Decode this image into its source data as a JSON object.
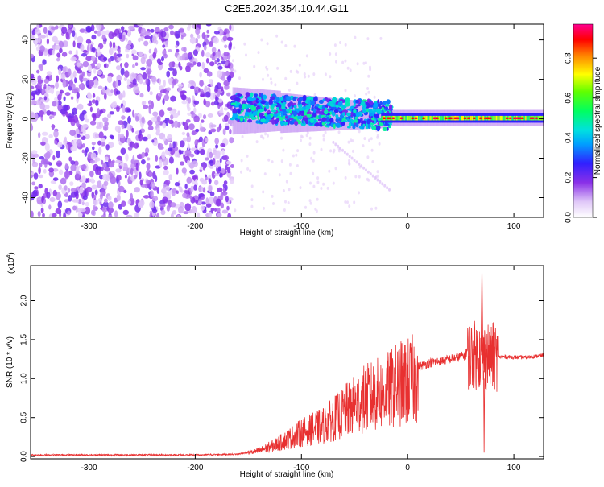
{
  "figure_title": "C2E5.2024.354.10.44.G11",
  "chart_data": [
    {
      "type": "heatmap",
      "xlabel": "Height of straight line (km)",
      "ylabel": "Frequency (Hz)",
      "xlim": [
        -355,
        128
      ],
      "ylim": [
        -50,
        48
      ],
      "x_ticks": [
        -300,
        -200,
        -100,
        0,
        100
      ],
      "y_ticks": [
        -40,
        -20,
        0,
        20,
        40
      ],
      "colorbar": {
        "label": "Normalized spectral amplitude",
        "range": [
          0,
          1
        ],
        "ticks": [
          "0.0",
          "0.2",
          "0.4",
          "0.6",
          "0.8"
        ],
        "colormap": [
          "#ffffff",
          "#d9b8f5",
          "#7f22e5",
          "#2020ff",
          "#00c8ff",
          "#00ff80",
          "#40ff00",
          "#ffff00",
          "#ff8000",
          "#ff0000",
          "#ff00a0"
        ]
      },
      "description_points": [
        {
          "height_km": -355,
          "freq_hz": 0,
          "amplitude": 0.15
        },
        {
          "height_km": -160,
          "freq_hz": 8,
          "amplitude": 0.25
        },
        {
          "height_km": -120,
          "freq_hz": 4,
          "amplitude": 0.35
        },
        {
          "height_km": -60,
          "freq_hz": 2,
          "amplitude": 0.4
        },
        {
          "height_km": -20,
          "freq_hz": 0,
          "amplitude": 0.9
        },
        {
          "height_km": 0,
          "freq_hz": 1,
          "amplitude": 0.9
        },
        {
          "height_km": 60,
          "freq_hz": 0,
          "amplitude": 0.95
        },
        {
          "height_km": 125,
          "freq_hz": 0,
          "amplitude": 0.95
        }
      ]
    },
    {
      "type": "line",
      "xlabel": "Height of straight line (km)",
      "ylabel": "SNR (10 * v/v)",
      "multiplier_label": "(x10",
      "multiplier_exp": "4",
      "multiplier_close": ")",
      "xlim": [
        -355,
        128
      ],
      "ylim": [
        -0.03,
        2.45
      ],
      "x_ticks": [
        -300,
        -200,
        -100,
        0,
        100
      ],
      "y_ticks": [
        "0.0",
        "0.5",
        "1.0",
        "1.5",
        "2.0"
      ],
      "series_color": "#e83030",
      "envelope": {
        "x": [
          -355,
          -200,
          -160,
          -140,
          -120,
          -100,
          -80,
          -60,
          -40,
          -20,
          -10,
          0,
          20,
          40,
          55,
          62,
          68,
          72,
          76,
          82,
          90,
          110,
          128
        ],
        "y": [
          0.02,
          0.02,
          0.03,
          0.08,
          0.2,
          0.35,
          0.45,
          0.65,
          0.85,
          0.95,
          1.05,
          1.1,
          1.2,
          1.25,
          1.3,
          1.3,
          1.3,
          1.28,
          1.3,
          1.28,
          1.28,
          1.27,
          1.3
        ]
      },
      "annotations": [
        {
          "x": 70,
          "y": 2.45,
          "note": "peak"
        },
        {
          "x": 72,
          "y": 0.05,
          "note": "dip"
        }
      ]
    }
  ]
}
